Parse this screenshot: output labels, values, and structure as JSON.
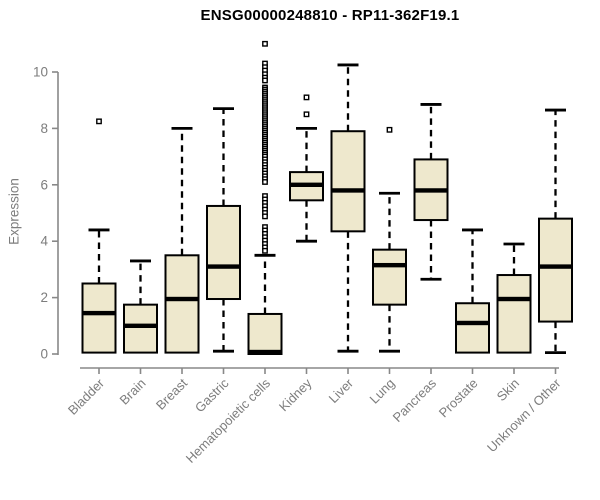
{
  "page": {
    "background": "#ffffff"
  },
  "chart_data": {
    "type": "boxplot",
    "title": "ENSG00000248810 - RP11-362F19.1",
    "ylabel": "Expression",
    "xlabel": "",
    "ylim": [
      0,
      11.2
    ],
    "yticks": [
      0,
      2,
      4,
      6,
      8,
      10
    ],
    "grid": false,
    "legend": "none",
    "colors": {
      "box_fill": "#EEE8CD",
      "box_border": "#000000",
      "median": "#000000",
      "whisker": "#000000",
      "outlier_stroke": "#000000",
      "axis": "#888888",
      "axis_text": "#7d7d7d",
      "title_text": "#000000"
    },
    "categories": [
      "Bladder",
      "Brain",
      "Breast",
      "Gastric",
      "Hematopoietic cells",
      "Kidney",
      "Liver",
      "Lung",
      "Pancreas",
      "Prostate",
      "Skin",
      "Unknown / Other"
    ],
    "series": [
      {
        "name": "Bladder",
        "low": 0.05,
        "q1": 0.05,
        "median": 1.45,
        "q3": 2.5,
        "high": 4.4,
        "outliers": [
          8.25
        ]
      },
      {
        "name": "Brain",
        "low": 0.05,
        "q1": 0.05,
        "median": 1.0,
        "q3": 1.75,
        "high": 3.3,
        "outliers": []
      },
      {
        "name": "Breast",
        "low": 0.05,
        "q1": 0.05,
        "median": 1.95,
        "q3": 3.5,
        "high": 8.0,
        "outliers": []
      },
      {
        "name": "Gastric",
        "low": 0.1,
        "q1": 1.95,
        "median": 3.1,
        "q3": 5.25,
        "high": 8.7,
        "outliers": []
      },
      {
        "name": "Hematopoietic cells",
        "low": 0.0,
        "q1": 0.0,
        "median": 0.07,
        "q3": 1.42,
        "high": 3.5,
        "outliers": [
          11.0,
          10.3,
          10.17,
          10.05,
          9.92,
          9.8,
          9.7,
          9.45,
          9.38,
          9.31,
          9.24,
          9.17,
          9.1,
          9.03,
          8.96,
          8.89,
          8.82,
          8.75,
          8.68,
          8.61,
          8.54,
          8.47,
          8.4,
          8.33,
          8.26,
          8.19,
          8.12,
          8.05,
          7.98,
          7.91,
          7.84,
          7.77,
          7.7,
          7.63,
          7.56,
          7.49,
          7.42,
          7.35,
          7.28,
          7.21,
          7.14,
          7.07,
          7.0,
          6.9,
          6.8,
          6.7,
          6.6,
          6.5,
          6.4,
          6.3,
          6.2,
          6.1,
          5.6,
          5.48,
          5.36,
          5.24,
          5.12,
          5.0,
          4.88,
          4.5,
          4.38,
          4.26,
          4.14,
          4.02,
          3.9,
          3.78,
          3.66
        ]
      },
      {
        "name": "Kidney",
        "low": 4.0,
        "q1": 5.45,
        "median": 6.0,
        "q3": 6.45,
        "high": 8.0,
        "outliers": [
          8.5,
          9.1
        ]
      },
      {
        "name": "Liver",
        "low": 0.1,
        "q1": 4.35,
        "median": 5.8,
        "q3": 7.9,
        "high": 10.25,
        "outliers": []
      },
      {
        "name": "Lung",
        "low": 0.1,
        "q1": 1.75,
        "median": 3.15,
        "q3": 3.7,
        "high": 5.7,
        "outliers": [
          7.95
        ]
      },
      {
        "name": "Pancreas",
        "low": 2.65,
        "q1": 4.75,
        "median": 5.8,
        "q3": 6.9,
        "high": 8.85,
        "outliers": []
      },
      {
        "name": "Prostate",
        "low": 0.05,
        "q1": 0.05,
        "median": 1.1,
        "q3": 1.8,
        "high": 4.4,
        "outliers": []
      },
      {
        "name": "Skin",
        "low": 0.05,
        "q1": 0.05,
        "median": 1.95,
        "q3": 2.8,
        "high": 3.9,
        "outliers": []
      },
      {
        "name": "Unknown / Other",
        "low": 0.05,
        "q1": 1.15,
        "median": 3.1,
        "q3": 4.8,
        "high": 8.65,
        "outliers": []
      }
    ]
  }
}
